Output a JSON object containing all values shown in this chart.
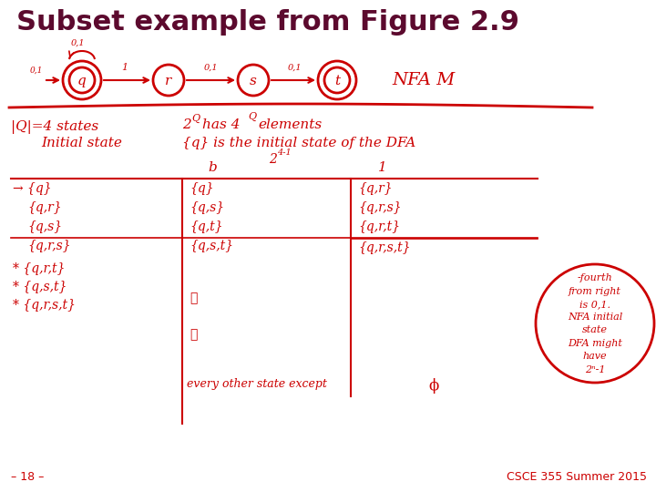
{
  "title": "Subset example from Figure 2.9",
  "title_color": "#5c0a2e",
  "title_fontsize": 22,
  "bg_color": "#ffffff",
  "footer_left": "– 18 –",
  "footer_right": "CSCE 355 Summer 2015",
  "footer_color": "#cc0000",
  "footer_fontsize": 9,
  "content_color": "#cc0000",
  "dark_red": "#aa0000"
}
